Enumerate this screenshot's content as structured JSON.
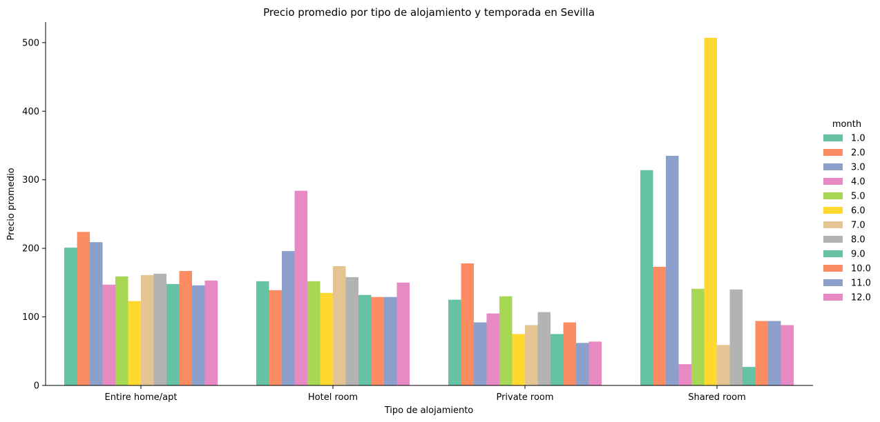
{
  "chart_data": {
    "type": "bar",
    "title": "Precio promedio por tipo de alojamiento y temporada en Sevilla",
    "xlabel": "Tipo de alojamiento",
    "ylabel": "Precio promedio",
    "ylim": [
      0,
      530
    ],
    "yticks": [
      0,
      100,
      200,
      300,
      400,
      500
    ],
    "categories": [
      "Entire home/apt",
      "Hotel room",
      "Private room",
      "Shared room"
    ],
    "legend_title": "month",
    "legend_position": "right",
    "series": [
      {
        "name": "1.0",
        "color": "#66c2a5",
        "values": [
          201,
          152,
          125,
          314
        ]
      },
      {
        "name": "2.0",
        "color": "#fc8d62",
        "values": [
          224,
          139,
          178,
          173
        ]
      },
      {
        "name": "3.0",
        "color": "#8da0cb",
        "values": [
          209,
          196,
          92,
          335
        ]
      },
      {
        "name": "4.0",
        "color": "#e78ac3",
        "values": [
          147,
          284,
          105,
          31
        ]
      },
      {
        "name": "5.0",
        "color": "#a6d854",
        "values": [
          159,
          152,
          130,
          141
        ]
      },
      {
        "name": "6.0",
        "color": "#ffd92f",
        "values": [
          123,
          135,
          75,
          507
        ]
      },
      {
        "name": "7.0",
        "color": "#e5c494",
        "values": [
          161,
          174,
          88,
          59
        ]
      },
      {
        "name": "8.0",
        "color": "#b3b3b3",
        "values": [
          163,
          158,
          107,
          140
        ]
      },
      {
        "name": "9.0",
        "color": "#66c2a5",
        "values": [
          148,
          132,
          75,
          27
        ]
      },
      {
        "name": "10.0",
        "color": "#fc8d62",
        "values": [
          167,
          129,
          92,
          94
        ]
      },
      {
        "name": "11.0",
        "color": "#8da0cb",
        "values": [
          146,
          129,
          62,
          94
        ]
      },
      {
        "name": "12.0",
        "color": "#e78ac3",
        "values": [
          153,
          150,
          64,
          88
        ]
      }
    ]
  }
}
